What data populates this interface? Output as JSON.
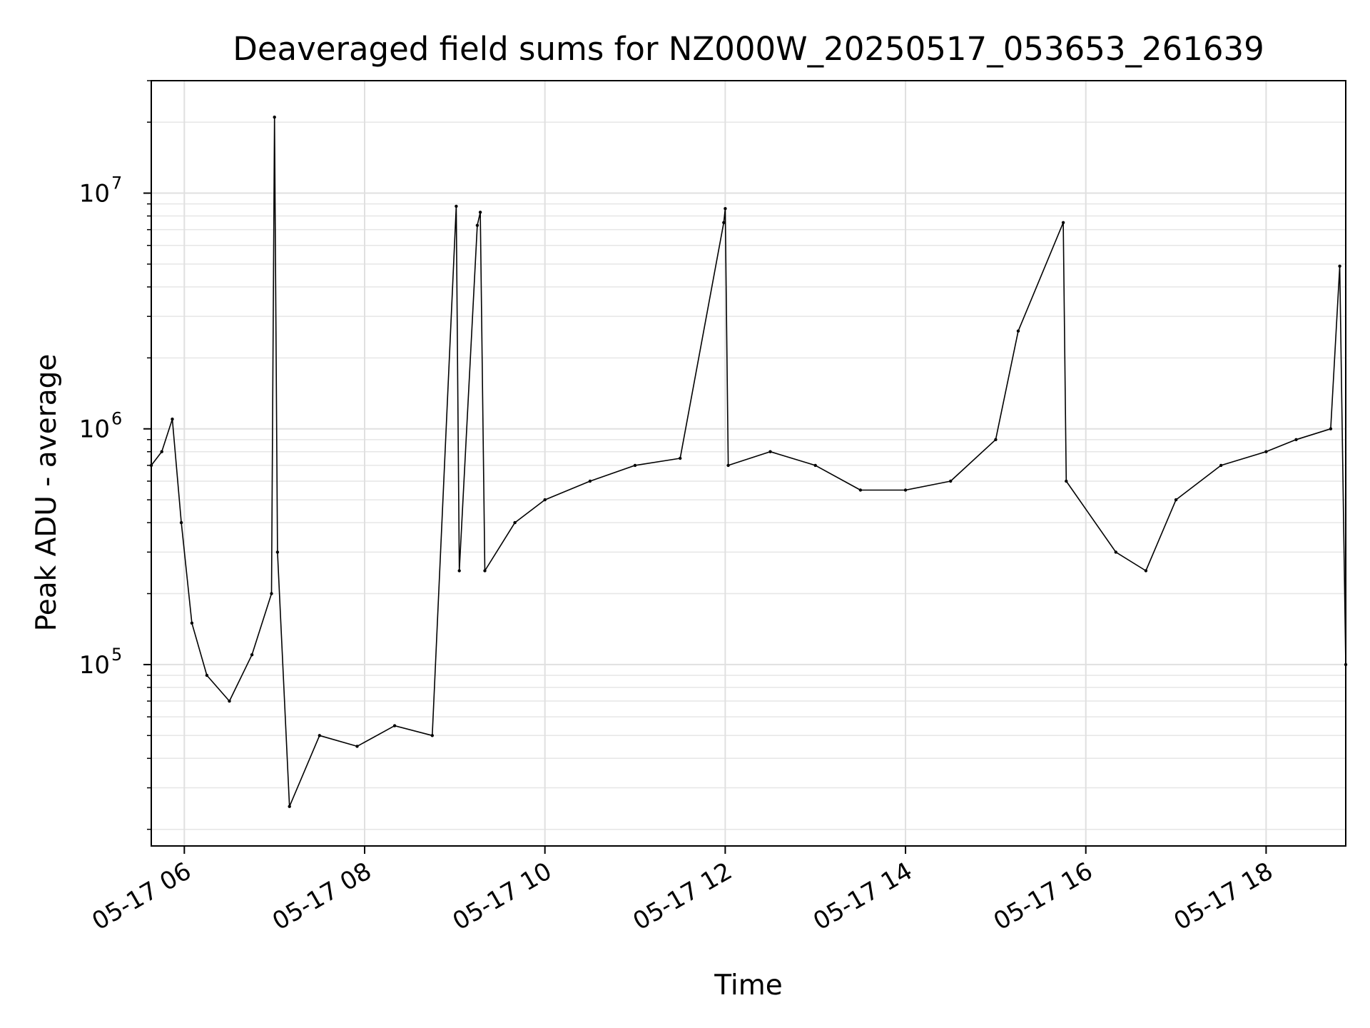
{
  "chart_data": {
    "type": "line",
    "title": "Deaveraged field sums for NZ000W_20250517_053653_261639",
    "xlabel": "Time",
    "ylabel": "Peak ADU - average",
    "yscale": "log",
    "ylim": [
      17000,
      30000000
    ],
    "xlim": [
      "2025-05-17 05:38",
      "2025-05-17 18:53"
    ],
    "grid": true,
    "x_ticks": [
      {
        "value": "2025-05-17 06:00",
        "label": "05-17 06"
      },
      {
        "value": "2025-05-17 08:00",
        "label": "05-17 08"
      },
      {
        "value": "2025-05-17 10:00",
        "label": "05-17 10"
      },
      {
        "value": "2025-05-17 12:00",
        "label": "05-17 12"
      },
      {
        "value": "2025-05-17 14:00",
        "label": "05-17 14"
      },
      {
        "value": "2025-05-17 16:00",
        "label": "05-17 16"
      },
      {
        "value": "2025-05-17 18:00",
        "label": "05-17 18"
      }
    ],
    "y_ticks": [
      {
        "value": 100000,
        "base": "10",
        "exp": "5"
      },
      {
        "value": 1000000,
        "base": "10",
        "exp": "6"
      },
      {
        "value": 10000000,
        "base": "10",
        "exp": "7"
      }
    ],
    "line_color": "#000000",
    "series": [
      {
        "points": [
          [
            "2025-05-17 05:38",
            700000
          ],
          [
            "2025-05-17 05:45",
            800000
          ],
          [
            "2025-05-17 05:52",
            1100000
          ],
          [
            "2025-05-17 05:58",
            400000
          ],
          [
            "2025-05-17 06:05",
            150000
          ],
          [
            "2025-05-17 06:15",
            90000
          ],
          [
            "2025-05-17 06:30",
            70000
          ],
          [
            "2025-05-17 06:45",
            110000
          ],
          [
            "2025-05-17 06:58",
            200000
          ],
          [
            "2025-05-17 07:00",
            21000000
          ],
          [
            "2025-05-17 07:02",
            300000
          ],
          [
            "2025-05-17 07:10",
            25000
          ],
          [
            "2025-05-17 07:30",
            50000
          ],
          [
            "2025-05-17 07:55",
            45000
          ],
          [
            "2025-05-17 08:20",
            55000
          ],
          [
            "2025-05-17 08:45",
            50000
          ],
          [
            "2025-05-17 09:01",
            8800000
          ],
          [
            "2025-05-17 09:03",
            250000
          ],
          [
            "2025-05-17 09:15",
            7300000
          ],
          [
            "2025-05-17 09:17",
            8300000
          ],
          [
            "2025-05-17 09:20",
            250000
          ],
          [
            "2025-05-17 09:40",
            400000
          ],
          [
            "2025-05-17 10:00",
            500000
          ],
          [
            "2025-05-17 10:30",
            600000
          ],
          [
            "2025-05-17 11:00",
            700000
          ],
          [
            "2025-05-17 11:30",
            750000
          ],
          [
            "2025-05-17 11:59",
            7500000
          ],
          [
            "2025-05-17 12:00",
            8600000
          ],
          [
            "2025-05-17 12:02",
            700000
          ],
          [
            "2025-05-17 12:30",
            800000
          ],
          [
            "2025-05-17 13:00",
            700000
          ],
          [
            "2025-05-17 13:30",
            550000
          ],
          [
            "2025-05-17 14:00",
            550000
          ],
          [
            "2025-05-17 14:30",
            600000
          ],
          [
            "2025-05-17 15:00",
            900000
          ],
          [
            "2025-05-17 15:15",
            2600000
          ],
          [
            "2025-05-17 15:45",
            7500000
          ],
          [
            "2025-05-17 15:47",
            600000
          ],
          [
            "2025-05-17 16:20",
            300000
          ],
          [
            "2025-05-17 16:40",
            250000
          ],
          [
            "2025-05-17 17:00",
            500000
          ],
          [
            "2025-05-17 17:30",
            700000
          ],
          [
            "2025-05-17 18:00",
            800000
          ],
          [
            "2025-05-17 18:20",
            900000
          ],
          [
            "2025-05-17 18:43",
            1000000
          ],
          [
            "2025-05-17 18:49",
            4900000
          ],
          [
            "2025-05-17 18:53",
            100000
          ]
        ]
      }
    ]
  }
}
